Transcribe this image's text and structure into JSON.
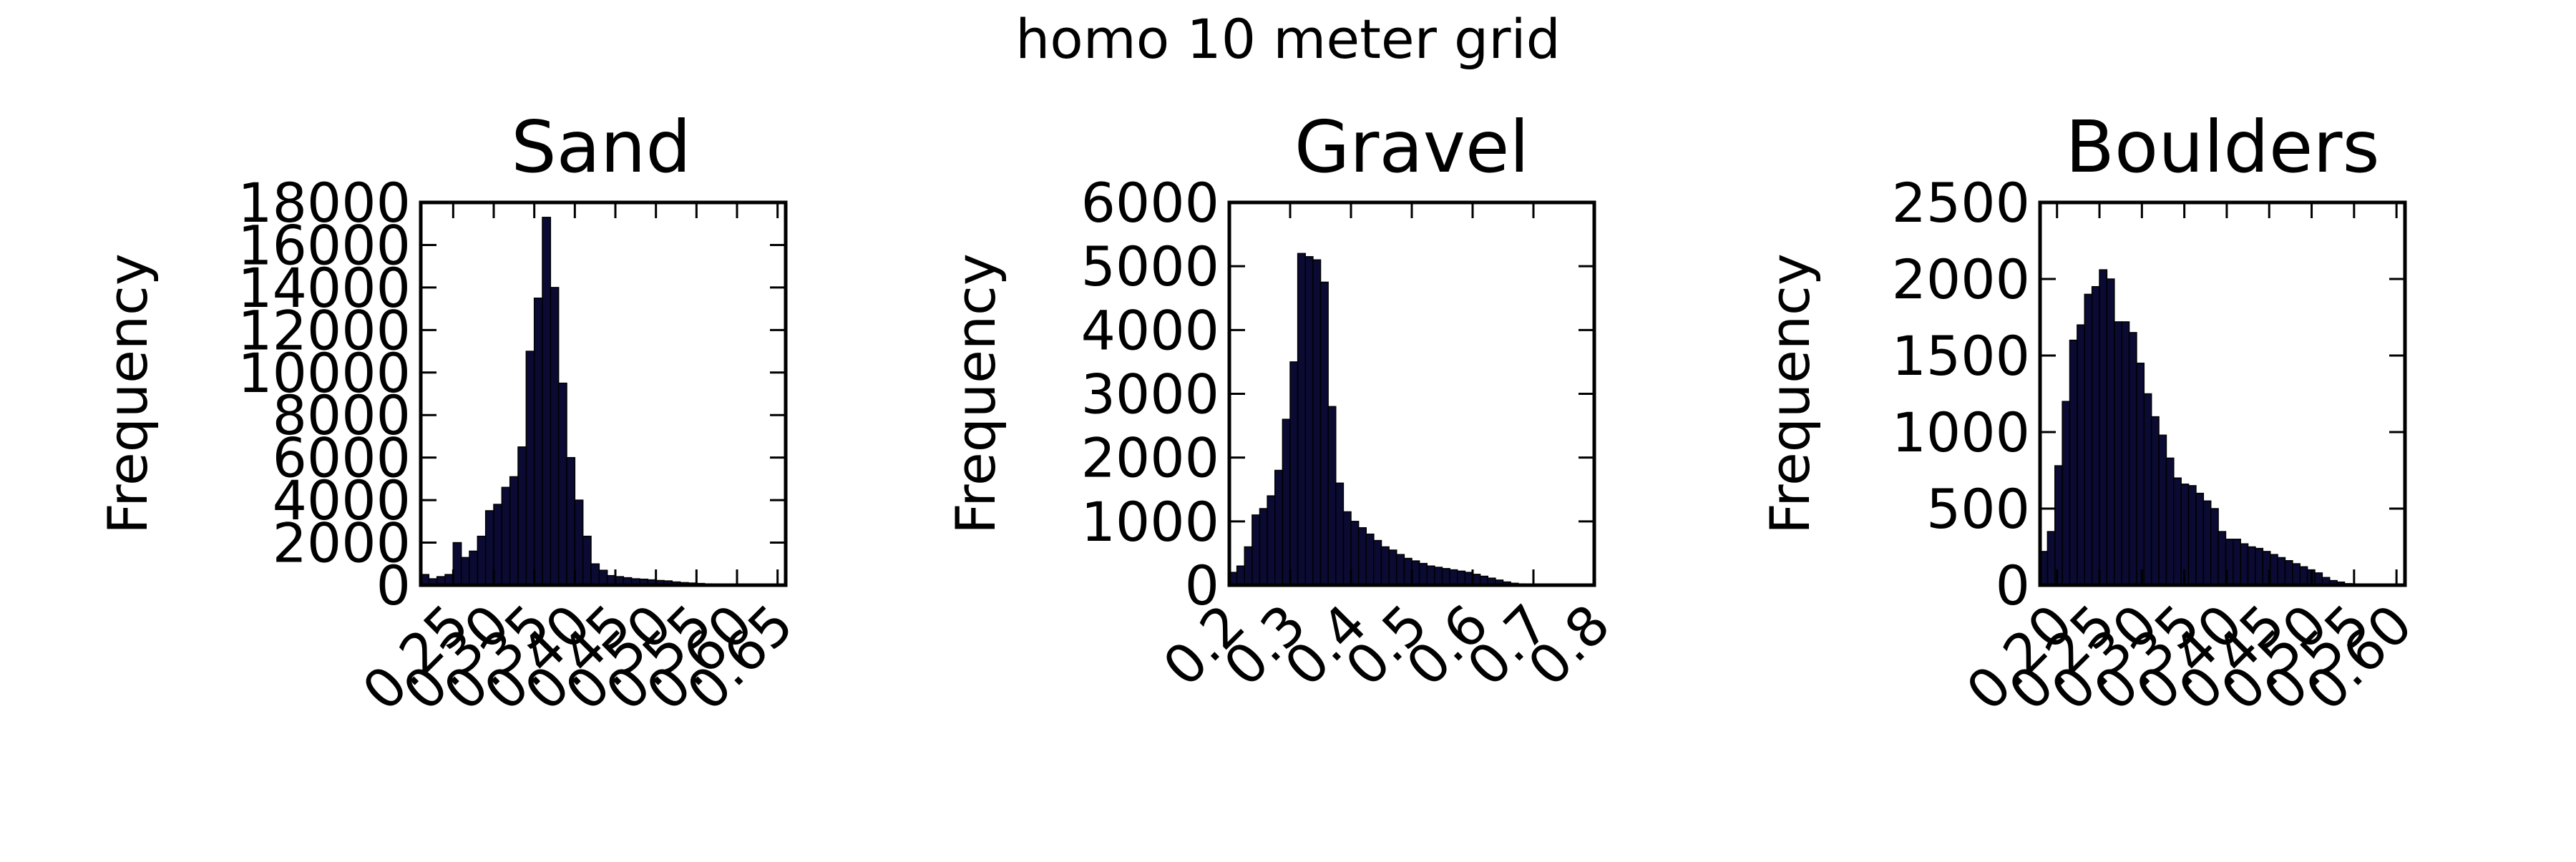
{
  "figure_title": "homo 10 meter grid",
  "chart_data": [
    {
      "type": "bar",
      "title": "Sand",
      "xlabel": "",
      "ylabel": "Frequency",
      "xlim": [
        0.21,
        0.66
      ],
      "ylim": [
        0,
        18000
      ],
      "xticks": [
        "0.25",
        "0.30",
        "0.35",
        "0.40",
        "0.45",
        "0.50",
        "0.55",
        "0.60",
        "0.65"
      ],
      "yticks": [
        "0",
        "2000",
        "4000",
        "6000",
        "8000",
        "10000",
        "12000",
        "14000",
        "16000",
        "18000"
      ],
      "bin_start": 0.21,
      "bin_width": 0.01,
      "values": [
        500,
        300,
        400,
        500,
        2000,
        1300,
        1600,
        2300,
        3500,
        3800,
        4600,
        5100,
        6500,
        11000,
        13500,
        17300,
        14000,
        9500,
        6000,
        4000,
        2300,
        1000,
        700,
        450,
        400,
        350,
        300,
        280,
        250,
        220,
        200,
        150,
        120,
        100,
        80,
        60,
        50,
        40,
        30,
        20
      ]
    },
    {
      "type": "bar",
      "title": "Gravel",
      "xlabel": "",
      "ylabel": "Frequency",
      "xlim": [
        0.2,
        0.8
      ],
      "ylim": [
        0,
        6000
      ],
      "xticks": [
        "0.2",
        "0.3",
        "0.4",
        "0.5",
        "0.6",
        "0.7",
        "0.8"
      ],
      "yticks": [
        "0",
        "1000",
        "2000",
        "3000",
        "4000",
        "5000",
        "6000"
      ],
      "bin_start": 0.2,
      "bin_width": 0.0125,
      "values": [
        200,
        300,
        600,
        1100,
        1200,
        1400,
        1800,
        2600,
        3500,
        5200,
        5150,
        5100,
        4750,
        2800,
        1600,
        1150,
        1000,
        900,
        800,
        700,
        600,
        550,
        480,
        420,
        380,
        340,
        300,
        280,
        260,
        240,
        220,
        200,
        170,
        140,
        110,
        80,
        50,
        30,
        20,
        10,
        5,
        5,
        0,
        0,
        0,
        0,
        0,
        0
      ]
    },
    {
      "type": "bar",
      "title": "Boulders",
      "xlabel": "",
      "ylabel": "Frequency",
      "xlim": [
        0.18,
        0.61
      ],
      "ylim": [
        0,
        2500
      ],
      "xticks": [
        "0.20",
        "0.25",
        "0.30",
        "0.35",
        "0.40",
        "0.45",
        "0.50",
        "0.55",
        "0.60"
      ],
      "yticks": [
        "0",
        "500",
        "1000",
        "1500",
        "2000",
        "2500"
      ],
      "bin_start": 0.18,
      "bin_width": 0.00875,
      "values": [
        220,
        350,
        780,
        1200,
        1600,
        1700,
        1900,
        1950,
        2060,
        2000,
        1720,
        1720,
        1650,
        1450,
        1250,
        1100,
        980,
        830,
        700,
        660,
        650,
        600,
        550,
        500,
        350,
        300,
        300,
        270,
        250,
        240,
        220,
        200,
        180,
        160,
        140,
        120,
        100,
        80,
        50,
        30,
        20,
        10,
        5,
        0
      ]
    }
  ]
}
